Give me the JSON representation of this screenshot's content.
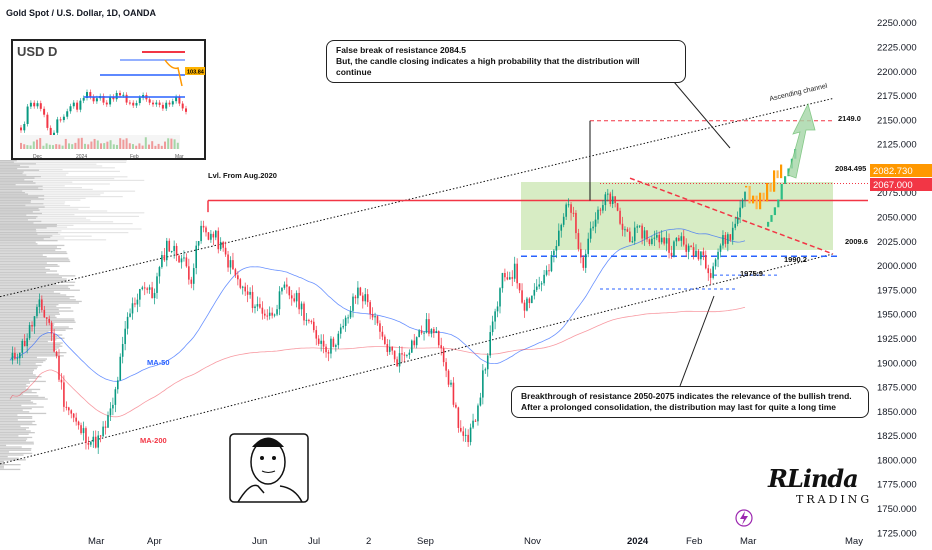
{
  "header": {
    "title": "Gold Spot / U.S. Dollar, 1D, OANDA"
  },
  "inset": {
    "label": "USD D",
    "months": [
      "Dec",
      "2024",
      "Feb",
      "Mar"
    ],
    "price": "103.84"
  },
  "callouts": {
    "top_line1": "False break of resistance 2084.5",
    "top_line2": "But, the candle closing indicates a high probability that the distribution will continue",
    "bottom_line1": "Breakthrough of resistance 2050-2075 indicates the relevance of the bullish trend.",
    "bottom_line2": "After a prolonged consolidation, the distribution may last for quite a long time"
  },
  "brand": {
    "line1": "RLinda",
    "line2": "TRADING"
  },
  "colors": {
    "up": "#089981",
    "down": "#f23645",
    "support": "#2962ff",
    "resistance": "#f23645",
    "zone": "#c9e6b0",
    "forecast_orange": "#ff9800",
    "forecast_green": "#2ebd85"
  },
  "chart_data": {
    "type": "candlestick",
    "title": "Gold Spot / U.S. Dollar, 1D, OANDA",
    "y_axis": {
      "ticks": [
        1725,
        1750,
        1775,
        1800,
        1825,
        1850,
        1875,
        1900,
        1925,
        1950,
        1975,
        2000,
        2025,
        2050,
        2075,
        2100,
        2125,
        2150,
        2175,
        2200,
        2225,
        2250
      ],
      "tick_labels": [
        "1725.000",
        "1750.000",
        "1775.000",
        "1800.000",
        "1825.000",
        "1850.000",
        "1875.000",
        "1900.000",
        "1925.000",
        "1950.000",
        "1975.000",
        "2000.000",
        "2025.000",
        "2050.000",
        "2075.000",
        "2100.000",
        "2125.000",
        "2150.000",
        "2175.000",
        "2200.000",
        "2225.000",
        "2250.000"
      ],
      "ylim": [
        1714,
        2256
      ]
    },
    "x_axis": {
      "labels": [
        "Mar",
        "Apr",
        "Jun",
        "Jul",
        "2",
        "Sep",
        "Nov",
        "2024",
        "Feb",
        "Mar",
        "May"
      ]
    },
    "price_tags": [
      {
        "label": "2082.730",
        "value": 2082.73
      },
      {
        "label": "2067.000",
        "value": 2067.0
      }
    ],
    "levels": [
      {
        "label": "Lvl. From Aug.2020",
        "value": 2067
      },
      {
        "label": "2149.0",
        "value": 2149
      },
      {
        "label": "2084.495",
        "value": 2084.5
      },
      {
        "label": "2009.6",
        "value": 2009.6
      },
      {
        "label": "1990.2",
        "value": 1990.2
      },
      {
        "label": "1975.9",
        "value": 1975.9
      }
    ],
    "annotations": [
      "Ascending channel",
      "MA-50",
      "MA-200"
    ],
    "path": [
      {
        "i": 0,
        "p": 1900
      },
      {
        "i": 6,
        "p": 1922
      },
      {
        "i": 12,
        "p": 1958
      },
      {
        "i": 16,
        "p": 1942
      },
      {
        "i": 22,
        "p": 1862
      },
      {
        "i": 28,
        "p": 1832
      },
      {
        "i": 34,
        "p": 1818
      },
      {
        "i": 37,
        "p": 1822
      },
      {
        "i": 42,
        "p": 1855
      },
      {
        "i": 48,
        "p": 1945
      },
      {
        "i": 54,
        "p": 1982
      },
      {
        "i": 58,
        "p": 1968
      },
      {
        "i": 64,
        "p": 2022
      },
      {
        "i": 70,
        "p": 2008
      },
      {
        "i": 74,
        "p": 1988
      },
      {
        "i": 78,
        "p": 2038
      },
      {
        "i": 84,
        "p": 2028
      },
      {
        "i": 90,
        "p": 2000
      },
      {
        "i": 94,
        "p": 1978
      },
      {
        "i": 100,
        "p": 1960
      },
      {
        "i": 106,
        "p": 1948
      },
      {
        "i": 112,
        "p": 1975
      },
      {
        "i": 118,
        "p": 1962
      },
      {
        "i": 124,
        "p": 1930
      },
      {
        "i": 130,
        "p": 1915
      },
      {
        "i": 136,
        "p": 1935
      },
      {
        "i": 142,
        "p": 1975
      },
      {
        "i": 146,
        "p": 1962
      },
      {
        "i": 152,
        "p": 1922
      },
      {
        "i": 158,
        "p": 1903
      },
      {
        "i": 164,
        "p": 1920
      },
      {
        "i": 170,
        "p": 1938
      },
      {
        "i": 176,
        "p": 1920
      },
      {
        "i": 180,
        "p": 1872
      },
      {
        "i": 184,
        "p": 1828
      },
      {
        "i": 187,
        "p": 1815
      },
      {
        "i": 191,
        "p": 1858
      },
      {
        "i": 196,
        "p": 1925
      },
      {
        "i": 201,
        "p": 1985
      },
      {
        "i": 206,
        "p": 1995
      },
      {
        "i": 210,
        "p": 1960
      },
      {
        "i": 214,
        "p": 1975
      },
      {
        "i": 220,
        "p": 1995
      },
      {
        "i": 225,
        "p": 2040
      },
      {
        "i": 228,
        "p": 2070
      },
      {
        "i": 231,
        "p": 2035
      },
      {
        "i": 234,
        "p": 2005
      },
      {
        "i": 237,
        "p": 2040
      },
      {
        "i": 241,
        "p": 2055
      },
      {
        "i": 244,
        "p": 2072
      },
      {
        "i": 247,
        "p": 2060
      },
      {
        "i": 250,
        "p": 2038
      },
      {
        "i": 254,
        "p": 2030
      },
      {
        "i": 258,
        "p": 2035
      },
      {
        "i": 262,
        "p": 2025
      },
      {
        "i": 266,
        "p": 2030
      },
      {
        "i": 270,
        "p": 2018
      },
      {
        "i": 274,
        "p": 2028
      },
      {
        "i": 278,
        "p": 2012
      },
      {
        "i": 282,
        "p": 2015
      },
      {
        "i": 286,
        "p": 1995
      },
      {
        "i": 290,
        "p": 2022
      },
      {
        "i": 295,
        "p": 2035
      },
      {
        "i": 298,
        "p": 2060
      },
      {
        "i": 300,
        "p": 2082
      }
    ]
  }
}
